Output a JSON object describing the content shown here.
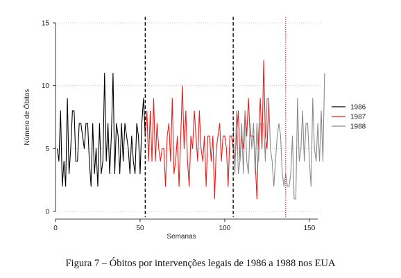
{
  "caption": "Figura 7 – Óbitos por intervenções legais de 1986 a 1988 nos EUA",
  "chart_data": {
    "type": "line",
    "xlabel": "Semanas",
    "ylabel": "Número de Óbitos",
    "xlim": [
      0,
      157
    ],
    "ylim": [
      0,
      15
    ],
    "xticks": [
      0,
      50,
      100,
      150
    ],
    "yticks": [
      0,
      5,
      10,
      15
    ],
    "grid": "horizontal dotted",
    "legend_position": "right",
    "vlines": [
      {
        "x": 53,
        "style": "dashed",
        "color": "#000000"
      },
      {
        "x": 105,
        "style": "dashed",
        "color": "#000000"
      },
      {
        "x": 136,
        "style": "dotted",
        "color": "#e0304a"
      }
    ],
    "series": [
      {
        "name": "1986",
        "color": "#000000",
        "x_start": 1,
        "values": [
          5,
          4,
          8,
          2,
          4,
          2,
          9,
          3,
          5,
          8,
          8,
          4,
          4,
          7,
          7,
          6,
          5,
          7,
          7,
          4,
          2,
          7,
          3,
          5,
          2,
          7,
          3,
          4,
          11,
          4,
          7,
          3,
          6,
          11,
          3,
          7,
          6,
          3,
          7,
          4,
          7,
          6,
          5,
          3,
          6,
          4,
          3,
          7,
          6,
          3,
          7,
          9,
          6
        ]
      },
      {
        "name": "1987",
        "color": "#e8201c",
        "x_start": 53,
        "values": [
          6,
          8,
          4,
          8,
          4,
          9,
          4,
          7,
          5,
          4,
          5,
          5,
          2,
          6,
          7,
          4,
          9,
          3,
          4,
          6,
          2,
          6,
          10,
          5,
          8,
          4,
          2,
          6,
          5,
          8,
          6,
          4,
          8,
          5,
          4,
          6,
          2,
          6,
          6,
          4,
          6,
          1,
          5,
          6,
          7,
          4,
          6,
          6,
          5,
          2,
          6,
          6,
          5,
          4,
          6,
          8,
          4,
          6,
          5,
          8,
          6,
          9,
          6,
          6,
          6,
          4,
          1,
          6,
          9,
          5,
          12,
          6,
          5,
          9
        ]
      },
      {
        "name": "1988",
        "color": "#8a8a8a",
        "x_start": 105,
        "values": [
          7,
          3,
          8,
          3,
          4,
          7,
          3,
          8,
          4,
          3,
          7,
          5,
          7,
          3,
          7,
          4,
          7,
          7,
          7,
          4,
          9,
          9,
          5,
          4,
          2,
          4,
          6,
          7,
          6,
          3,
          2,
          3,
          2,
          2,
          3,
          6,
          1,
          1,
          9,
          4,
          5,
          8,
          4,
          7,
          7,
          4,
          2,
          9,
          5,
          4,
          7,
          4,
          8,
          4,
          11
        ]
      }
    ]
  }
}
